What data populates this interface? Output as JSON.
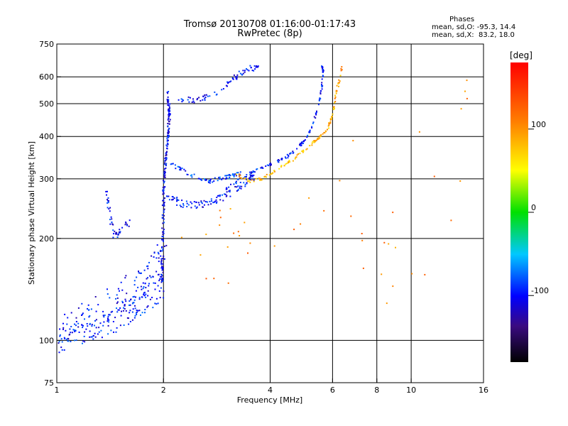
{
  "header": {
    "title_line1": "Tromsø 20130708 01:16:00-01:17:43",
    "title_line2": "RwPretec (8p)"
  },
  "phases": {
    "heading": "Phases",
    "o_line": "mean, sd,O: -95.3, 14.4",
    "x_line": "mean, sd,X:  83.2, 18.0"
  },
  "colorbar": {
    "unit_label": "[deg]",
    "range": [
      -180,
      180
    ],
    "ticks": [
      {
        "value": 100,
        "label": "100"
      },
      {
        "value": 0,
        "label": "0"
      },
      {
        "value": -100,
        "label": "-100"
      }
    ]
  },
  "chart_data": {
    "type": "scatter",
    "title": "Tromsø 20130708 01:16:00-01:17:43",
    "subtitle": "RwPretec (8p)",
    "xlabel": "Frequency [MHz]",
    "ylabel": "Stationary phase Virtual Height [km]",
    "xscale": "log",
    "yscale": "log",
    "xlim": [
      1,
      16
    ],
    "ylim": [
      75,
      750
    ],
    "grid": true,
    "x_ticks": [
      {
        "value": 1,
        "label": "1"
      },
      {
        "value": 2,
        "label": "2"
      },
      {
        "value": 4,
        "label": "4"
      },
      {
        "value": 6,
        "label": "6"
      },
      {
        "value": 8,
        "label": "8"
      },
      {
        "value": 10,
        "label": "10"
      },
      {
        "value": 16,
        "label": "16"
      }
    ],
    "x_grid": [
      2,
      4,
      6,
      8,
      10
    ],
    "y_ticks": [
      {
        "value": 75,
        "label": "75"
      },
      {
        "value": 100,
        "label": "100"
      },
      {
        "value": 200,
        "label": "200"
      },
      {
        "value": 300,
        "label": "300"
      },
      {
        "value": 400,
        "label": "400"
      },
      {
        "value": 500,
        "label": "500"
      },
      {
        "value": 600,
        "label": "600"
      },
      {
        "value": 750,
        "label": "750"
      }
    ],
    "y_grid": [
      100,
      200,
      300,
      400,
      500,
      600
    ],
    "color_scale": "phase [deg], rainbow -180 to 180",
    "traces": [
      {
        "name": "O-mode E/F1 lower trace",
        "phase": -95,
        "spread": 0.18,
        "n": 170,
        "points": [
          [
            1.0,
            100
          ],
          [
            1.05,
            102
          ],
          [
            1.1,
            104
          ],
          [
            1.2,
            107
          ],
          [
            1.3,
            110
          ],
          [
            1.4,
            113
          ],
          [
            1.5,
            118
          ],
          [
            1.6,
            123
          ],
          [
            1.7,
            128
          ],
          [
            1.8,
            134
          ],
          [
            1.9,
            140
          ],
          [
            1.97,
            145
          ]
        ]
      },
      {
        "name": "O-mode E upper band",
        "phase": -100,
        "spread": 0.22,
        "n": 110,
        "points": [
          [
            1.05,
            108
          ],
          [
            1.15,
            115
          ],
          [
            1.3,
            122
          ],
          [
            1.45,
            130
          ],
          [
            1.6,
            140
          ],
          [
            1.75,
            150
          ],
          [
            1.85,
            160
          ],
          [
            1.93,
            172
          ],
          [
            1.98,
            190
          ]
        ]
      },
      {
        "name": "O-mode blanketing column at 2 MHz",
        "phase": -105,
        "spread": 0.04,
        "n": 190,
        "points": [
          [
            1.98,
            150
          ],
          [
            1.99,
            200
          ],
          [
            2.0,
            250
          ],
          [
            2.01,
            300
          ],
          [
            2.03,
            350
          ],
          [
            2.06,
            400
          ],
          [
            2.08,
            470
          ],
          [
            2.05,
            540
          ]
        ]
      },
      {
        "name": "O-mode 2nd cluster near 1.4 MHz",
        "phase": -100,
        "spread": 0.05,
        "n": 45,
        "points": [
          [
            1.38,
            280
          ],
          [
            1.4,
            250
          ],
          [
            1.42,
            225
          ],
          [
            1.45,
            205
          ],
          [
            1.5,
            208
          ],
          [
            1.58,
            220
          ],
          [
            1.63,
            235
          ]
        ]
      },
      {
        "name": "O-mode F lower trace",
        "phase": -100,
        "spread": 0.05,
        "n": 110,
        "points": [
          [
            2.05,
            270
          ],
          [
            2.2,
            255
          ],
          [
            2.4,
            250
          ],
          [
            2.6,
            252
          ],
          [
            2.8,
            258
          ],
          [
            3.0,
            268
          ],
          [
            3.2,
            280
          ],
          [
            3.4,
            292
          ],
          [
            3.6,
            305
          ]
        ]
      },
      {
        "name": "O-mode F2 cusp",
        "phase": -90,
        "spread": 0.03,
        "n": 70,
        "points": [
          [
            2.1,
            330
          ],
          [
            2.3,
            315
          ],
          [
            2.5,
            300
          ],
          [
            2.7,
            295
          ],
          [
            2.9,
            300
          ],
          [
            3.1,
            305
          ],
          [
            3.3,
            312
          ]
        ]
      },
      {
        "name": "O-mode F2 main trace",
        "phase": -95,
        "spread": 0.02,
        "n": 130,
        "points": [
          [
            3.0,
            280
          ],
          [
            3.3,
            300
          ],
          [
            3.6,
            315
          ],
          [
            4.0,
            330
          ],
          [
            4.4,
            345
          ],
          [
            4.8,
            370
          ],
          [
            5.1,
            400
          ],
          [
            5.3,
            440
          ],
          [
            5.5,
            500
          ],
          [
            5.6,
            560
          ],
          [
            5.65,
            620
          ],
          [
            5.6,
            650
          ]
        ]
      },
      {
        "name": "O-mode 2nd hop",
        "phase": -100,
        "spread": 0.04,
        "n": 75,
        "points": [
          [
            2.2,
            520
          ],
          [
            2.4,
            510
          ],
          [
            2.6,
            520
          ],
          [
            2.8,
            540
          ],
          [
            3.0,
            570
          ],
          [
            3.2,
            600
          ],
          [
            3.4,
            630
          ],
          [
            3.7,
            640
          ]
        ]
      },
      {
        "name": "X-mode F2 trace",
        "phase": 85,
        "spread": 0.02,
        "n": 110,
        "points": [
          [
            3.2,
            310
          ],
          [
            3.5,
            295
          ],
          [
            3.8,
            300
          ],
          [
            4.2,
            320
          ],
          [
            4.6,
            340
          ],
          [
            5.0,
            365
          ],
          [
            5.4,
            390
          ],
          [
            5.8,
            420
          ],
          [
            6.0,
            460
          ],
          [
            6.1,
            510
          ]
        ]
      },
      {
        "name": "X-mode high frequency tail",
        "phase": 95,
        "spread": 0.03,
        "n": 20,
        "points": [
          [
            6.1,
            520
          ],
          [
            6.2,
            560
          ],
          [
            6.3,
            600
          ],
          [
            6.4,
            640
          ]
        ]
      },
      {
        "name": "Scattered noise",
        "phase": 110,
        "spread": 0.9,
        "n": 45,
        "points": [
          [
            2.5,
            200
          ],
          [
            3.0,
            200
          ],
          [
            5.0,
            230
          ],
          [
            7.0,
            250
          ],
          [
            9.0,
            180
          ],
          [
            12.0,
            300
          ],
          [
            13.0,
            500
          ]
        ]
      }
    ]
  }
}
